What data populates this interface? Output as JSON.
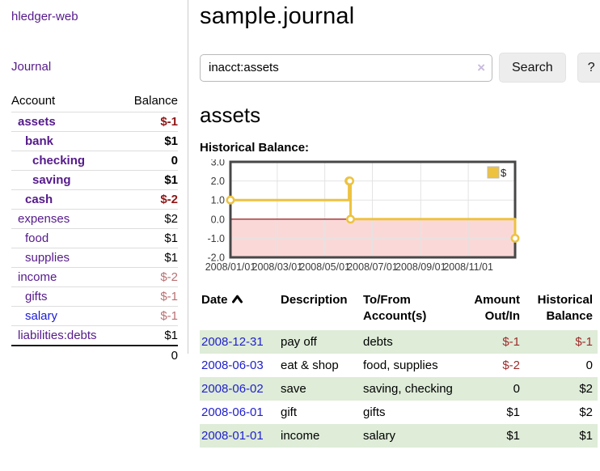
{
  "app": {
    "title": "hledger-web"
  },
  "sidebar": {
    "journal_link": "Journal",
    "accounts": {
      "account_header": "Account",
      "balance_header": "Balance",
      "rows": [
        {
          "name": "assets",
          "indent": 1,
          "bold": true,
          "balance": "$-1",
          "balance_class": "bal-neg-strong",
          "link_class": "lk-purple"
        },
        {
          "name": "bank",
          "indent": 2,
          "bold": true,
          "balance": "$1",
          "balance_class": "bal-pos",
          "link_class": "lk-purple"
        },
        {
          "name": "checking",
          "indent": 3,
          "bold": true,
          "balance": "0",
          "balance_class": "bal-pos",
          "link_class": "lk-purple"
        },
        {
          "name": "saving",
          "indent": 3,
          "bold": true,
          "balance": "$1",
          "balance_class": "bal-pos",
          "link_class": "lk-purple"
        },
        {
          "name": "cash",
          "indent": 2,
          "bold": true,
          "balance": "$-2",
          "balance_class": "bal-neg-strong",
          "link_class": "lk-purple"
        },
        {
          "name": "expenses",
          "indent": 1,
          "bold": false,
          "balance": "$2",
          "balance_class": "bal-pos",
          "link_class": "lk-purple"
        },
        {
          "name": "food",
          "indent": 2,
          "bold": false,
          "balance": "$1",
          "balance_class": "bal-pos",
          "link_class": "lk-purple"
        },
        {
          "name": "supplies",
          "indent": 2,
          "bold": false,
          "balance": "$1",
          "balance_class": "bal-pos",
          "link_class": "lk-purple"
        },
        {
          "name": "income",
          "indent": 1,
          "bold": false,
          "balance": "$-2",
          "balance_class": "bal-neg-muted",
          "link_class": "lk-purple"
        },
        {
          "name": "gifts",
          "indent": 2,
          "bold": false,
          "balance": "$-1",
          "balance_class": "bal-neg-muted",
          "link_class": "lk-purple"
        },
        {
          "name": "salary",
          "indent": 2,
          "bold": false,
          "balance": "$-1",
          "balance_class": "bal-neg-muted",
          "link_class": "lk-blue"
        },
        {
          "name": "liabilities:debts",
          "indent": 1,
          "bold": false,
          "balance": "$1",
          "balance_class": "bal-pos",
          "link_class": "lk-purple"
        }
      ],
      "total": "0"
    }
  },
  "main": {
    "title": "sample.journal",
    "search": {
      "value": "inacct:assets",
      "clear_icon": "×",
      "search_button": "Search",
      "help_button": "?"
    },
    "account_heading": "assets",
    "chart_label": "Historical Balance:"
  },
  "chart_data": {
    "type": "line",
    "step": true,
    "title": "Historical Balance:",
    "x_range": [
      "2008-01-01",
      "2008-12-31"
    ],
    "y_range": [
      -2,
      3
    ],
    "x_ticks": [
      {
        "x": "2008-01-01",
        "label": "2008/01/01"
      },
      {
        "x": "2008-03-01",
        "label": "2008/03/01"
      },
      {
        "x": "2008-05-01",
        "label": "2008/05/01"
      },
      {
        "x": "2008-07-01",
        "label": "2008/07/01"
      },
      {
        "x": "2008-09-01",
        "label": "2008/09/01"
      },
      {
        "x": "2008-11-01",
        "label": "2008/11/01"
      }
    ],
    "y_ticks": [
      {
        "y": 3,
        "label": "3.0"
      },
      {
        "y": 2,
        "label": "2.0"
      },
      {
        "y": 1,
        "label": "1.0"
      },
      {
        "y": 0,
        "label": "0.0"
      },
      {
        "y": -1,
        "label": "-1.0"
      },
      {
        "y": -2,
        "label": "-2.0"
      }
    ],
    "series": [
      {
        "name": "$",
        "color": "#edc240",
        "points": [
          [
            "2008-01-01",
            1
          ],
          [
            "2008-06-01",
            2
          ],
          [
            "2008-06-02",
            2
          ],
          [
            "2008-06-03",
            0
          ],
          [
            "2008-12-31",
            -1
          ]
        ]
      }
    ],
    "legend_position": "top-right",
    "negative_fill": "#fbd8d8",
    "zero_line_color": "#8b0000",
    "grid_color": "#e3e3e3",
    "border_color": "#474747"
  },
  "register": {
    "headers": {
      "date": "Date",
      "description": "Description",
      "accounts": "To/From Account(s)",
      "amount": "Amount Out/In",
      "balance": "Historical Balance"
    },
    "rows": [
      {
        "date": "2008-12-31",
        "description": "pay off",
        "accounts": "debts",
        "amount": "$-1",
        "amount_class": "amt-neg",
        "balance": "$-1",
        "balance_class": "amt-neg"
      },
      {
        "date": "2008-06-03",
        "description": "eat & shop",
        "accounts": "food, supplies",
        "amount": "$-2",
        "amount_class": "amt-neg",
        "balance": "0",
        "balance_class": "amt-pos"
      },
      {
        "date": "2008-06-02",
        "description": "save",
        "accounts": "saving, checking",
        "amount": "0",
        "amount_class": "amt-pos",
        "balance": "$2",
        "balance_class": "amt-pos"
      },
      {
        "date": "2008-06-01",
        "description": "gift",
        "accounts": "gifts",
        "amount": "$1",
        "amount_class": "amt-pos",
        "balance": "$2",
        "balance_class": "amt-pos"
      },
      {
        "date": "2008-01-01",
        "description": "income",
        "accounts": "salary",
        "amount": "$1",
        "amount_class": "amt-pos",
        "balance": "$1",
        "balance_class": "amt-pos"
      }
    ]
  }
}
